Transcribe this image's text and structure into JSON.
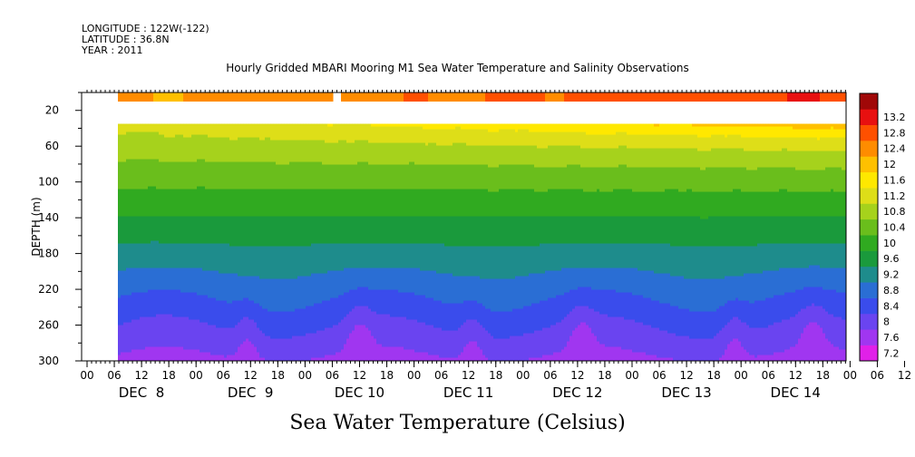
{
  "header": {
    "longitude": "LONGITUDE : 122W(-122)",
    "latitude": "LATITUDE : 36.8N",
    "year": "YEAR : 2011",
    "title": "Hourly Gridded MBARI Mooring M1 Sea Water Temperature and Salinity Observations"
  },
  "footer": {
    "variable_label": "Sea Water Temperature (Celsius)"
  },
  "chart_data": {
    "type": "heatmap",
    "title": "Hourly Gridded MBARI Mooring M1 Sea Water Temperature and Salinity Observations",
    "xlabel": "",
    "ylabel": "DEPTH (m)",
    "colorbar_label": "Sea Water Temperature (Celsius)",
    "y_axis": {
      "range": [
        0,
        300
      ],
      "inverted": true,
      "tick_labels": [
        "20",
        "60",
        "100",
        "140",
        "180",
        "220",
        "260",
        "300"
      ]
    },
    "x_axis": {
      "hour_labels": [
        "00",
        "06",
        "12",
        "18",
        "00",
        "06",
        "12",
        "18",
        "00",
        "06",
        "12",
        "18",
        "00",
        "06",
        "12",
        "18",
        "00",
        "06",
        "12",
        "18",
        "00",
        "06",
        "12",
        "18",
        "00",
        "06",
        "12",
        "18",
        "00",
        "06",
        "12",
        "18"
      ],
      "day_labels": [
        "DEC  8",
        "DEC  9",
        "DEC 10",
        "DEC 11",
        "DEC 12",
        "DEC 13",
        "DEC 14"
      ]
    },
    "colorbar": {
      "levels": [
        "7.2",
        "7.6",
        "8",
        "8.4",
        "8.8",
        "9.2",
        "9.6",
        "10",
        "10.4",
        "10.8",
        "11.2",
        "11.6",
        "12",
        "12.4",
        "12.8",
        "13.2"
      ],
      "colors": [
        "#e020e8",
        "#a036f0",
        "#6a44f0",
        "#3a4cec",
        "#2a6ed4",
        "#1e8c8c",
        "#1a9a3c",
        "#30aa20",
        "#6abe1c",
        "#a6d21c",
        "#dede18",
        "#ffe800",
        "#ffc000",
        "#ff8c00",
        "#ff5000",
        "#e81010",
        "#a00808"
      ]
    },
    "data_start_x_label": "06 DEC 8",
    "upper_sensor_depth_m": 10,
    "upper_gap_depth_m": [
      20,
      35
    ],
    "main_data_depth_m": [
      35,
      300
    ],
    "notes_temp_range": [
      7.2,
      13.2
    ]
  }
}
